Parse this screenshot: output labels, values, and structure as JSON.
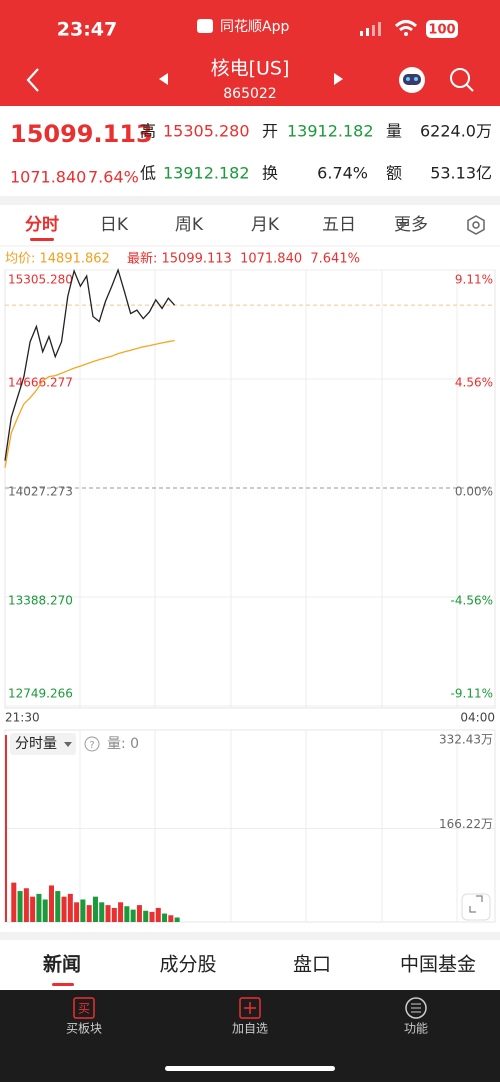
{
  "status_bar": {
    "time": "23:47",
    "app": "同花顺App",
    "battery": "100"
  },
  "nav": {
    "title": "核电[US]",
    "code": "865022"
  },
  "quote": {
    "price": "15099.113",
    "change": "1071.840",
    "change_pct": "7.64%",
    "fields": [
      {
        "label": "高",
        "value": "15305.280"
      },
      {
        "label": "开",
        "value": "13912.182"
      },
      {
        "label": "量",
        "value": "6224.0万"
      },
      {
        "label": "低",
        "value": "13912.182"
      },
      {
        "label": "换",
        "value": "6.74%"
      },
      {
        "label": "额",
        "value": "53.13亿"
      }
    ]
  },
  "tabs": [
    "分时",
    "日K",
    "周K",
    "月K",
    "五日",
    "更多"
  ],
  "info": {
    "avg": "均价: 14891.862",
    "latest": "最新: 15099.113  1071.840  7.641%"
  },
  "chart_data": [
    {
      "type": "line",
      "x": [
        0,
        5,
        10,
        15,
        20,
        25,
        30,
        35,
        40,
        45,
        50,
        55,
        60,
        65,
        70,
        75,
        80,
        85,
        90,
        95,
        100,
        105,
        110,
        115,
        120,
        125,
        130,
        135
      ],
      "series": [
        {
          "color": "#222222",
          "values": [
            14187,
            14441,
            14560,
            14678,
            14885,
            14974,
            14826,
            14915,
            14797,
            14885,
            15152,
            15300,
            15210,
            15270,
            15033,
            15003,
            15122,
            15210,
            15305.28,
            15180,
            15050,
            15070,
            15020,
            15060,
            15130,
            15080,
            15140,
            15099.113
          ]
        },
        {
          "color": "#f5a623",
          "values": [
            14146,
            14350,
            14439,
            14520,
            14556,
            14600,
            14656,
            14680,
            14686,
            14700,
            14715,
            14730,
            14742,
            14755,
            14768,
            14780,
            14790,
            14800,
            14815,
            14825,
            14835,
            14845,
            14855,
            14862,
            14870,
            14878,
            14885,
            14891.862
          ]
        }
      ],
      "xlim": [
        0,
        390
      ],
      "xticks": [
        {
          "value": 0,
          "label": "21:30"
        },
        {
          "value": 390,
          "label": "04:00"
        }
      ],
      "ylim": [
        12749.266,
        15305.28
      ],
      "yticks": [
        {
          "value": 15305.28,
          "label": "15305.280"
        },
        {
          "value": 14666.277,
          "label": "14666.277"
        },
        {
          "value": 14027.273,
          "label": "14027.273"
        },
        {
          "value": 13388.27,
          "label": "13388.270"
        },
        {
          "value": 12749.266,
          "label": "12749.266"
        }
      ],
      "y2lim": [
        -9.11,
        9.11
      ],
      "y2ticks": [
        {
          "value": 9.11,
          "label": "9.11%"
        },
        {
          "value": 4.56,
          "label": "4.56%"
        },
        {
          "value": 0,
          "label": "0.00%"
        },
        {
          "value": -4.56,
          "label": "-4.56%"
        },
        {
          "value": -9.11,
          "label": "-9.11%"
        }
      ],
      "reference": 15099.113,
      "grid": true
    },
    {
      "type": "bar",
      "x": [
        0,
        5,
        10,
        15,
        20,
        25,
        30,
        35,
        40,
        45,
        50,
        55,
        60,
        65,
        70,
        75,
        80,
        85,
        90,
        95,
        100,
        105,
        110,
        115,
        120,
        125,
        130,
        135
      ],
      "values": [
        332.43,
        70,
        55,
        60,
        45,
        50,
        40,
        65,
        55,
        45,
        50,
        35,
        40,
        30,
        45,
        35,
        30,
        25,
        35,
        28,
        22,
        30,
        20,
        18,
        25,
        15,
        12,
        8
      ],
      "bar_colors": [
        "#e93030",
        "#e93030",
        "#1a9a3a",
        "#e93030",
        "#e93030",
        "#1a9a3a",
        "#1a9a3a",
        "#e93030",
        "#1a9a3a",
        "#e93030",
        "#e93030",
        "#e93030",
        "#1a9a3a",
        "#e93030",
        "#1a9a3a",
        "#1a9a3a",
        "#e93030",
        "#e93030",
        "#e93030",
        "#1a9a3a",
        "#1a9a3a",
        "#e93030",
        "#1a9a3a",
        "#e93030",
        "#e93030",
        "#1a9a3a",
        "#e93030",
        "#1a9a3a"
      ],
      "xlim": [
        0,
        390
      ],
      "ylim": [
        0,
        332.43
      ],
      "yticks": [
        {
          "value": 332.43,
          "label": "332.43万"
        },
        {
          "value": 166.22,
          "label": "166.22万"
        }
      ]
    }
  ],
  "volume_header": {
    "selector": "分时量",
    "label": "量: 0"
  },
  "bottom_tabs": [
    "新闻",
    "成分股",
    "盘口",
    "中国基金"
  ],
  "toolbar": {
    "buy_icon": "买",
    "labels": [
      "买板块",
      "加自选",
      "功能"
    ]
  }
}
